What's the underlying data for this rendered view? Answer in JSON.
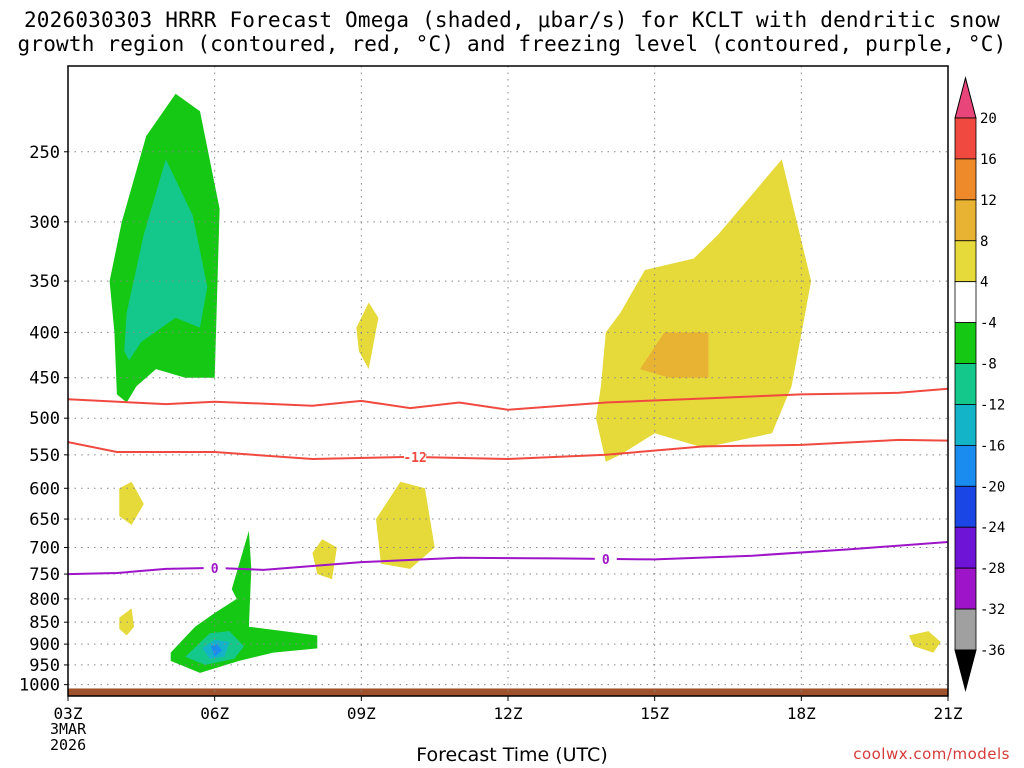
{
  "chart_data": {
    "type": "heatmap",
    "title_line1": "2026030303 HRRR Forecast Omega (shaded, μbar/s) for KCLT with dendritic snow",
    "title_line2": "growth region (contoured, red, °C) and freezing level (contoured, purple, °C)",
    "xlabel": "Forecast Time (UTC)",
    "x_ticks": [
      "03Z",
      "06Z",
      "09Z",
      "12Z",
      "15Z",
      "18Z",
      "21Z"
    ],
    "x_start_sub": [
      "3MAR",
      "2026"
    ],
    "x_range_hours": [
      0,
      18
    ],
    "y_ticks": [
      250,
      300,
      350,
      400,
      450,
      500,
      550,
      600,
      650,
      700,
      750,
      800,
      850,
      900,
      950,
      1000
    ],
    "y_axis": "pressure (hPa), log-scaled, increasing downward",
    "y_range": [
      200,
      1030
    ],
    "grid": true,
    "colorbar": {
      "labels": [
        "20",
        "16",
        "12",
        "8",
        "4",
        "-4",
        "-8",
        "-12",
        "-16",
        "-20",
        "-24",
        "-28",
        "-32",
        "-36"
      ],
      "colors": [
        "#e8467a",
        "#f04a40",
        "#ee8a2a",
        "#e8b232",
        "#e6d93a",
        "#ffffff",
        "#14c814",
        "#14c88c",
        "#14b4c8",
        "#1a8cf0",
        "#1a46e6",
        "#6e14d6",
        "#9e14c8",
        "#a0a0a0",
        "#000000"
      ]
    },
    "omega_regions": [
      {
        "level": -4,
        "color": "#14c814",
        "points": [
          [
            1.0,
            470
          ],
          [
            0.95,
            400
          ],
          [
            0.85,
            350
          ],
          [
            1.1,
            300
          ],
          [
            1.6,
            240
          ],
          [
            2.2,
            215
          ],
          [
            2.7,
            225
          ],
          [
            3.1,
            290
          ],
          [
            3.0,
            450
          ],
          [
            2.4,
            450
          ],
          [
            1.8,
            440
          ],
          [
            1.4,
            460
          ],
          [
            1.2,
            480
          ]
        ]
      },
      {
        "level": -8,
        "color": "#14c88c",
        "points": [
          [
            1.15,
            420
          ],
          [
            1.2,
            380
          ],
          [
            1.55,
            310
          ],
          [
            2.0,
            255
          ],
          [
            2.55,
            295
          ],
          [
            2.85,
            355
          ],
          [
            2.7,
            395
          ],
          [
            2.2,
            385
          ],
          [
            1.5,
            410
          ],
          [
            1.25,
            430
          ]
        ]
      },
      {
        "level": -4,
        "color": "#14c814",
        "points": [
          [
            2.1,
            920
          ],
          [
            2.6,
            860
          ],
          [
            3.0,
            830
          ],
          [
            3.45,
            800
          ],
          [
            3.35,
            780
          ],
          [
            3.7,
            670
          ],
          [
            3.75,
            740
          ],
          [
            3.7,
            860
          ],
          [
            5.1,
            880
          ],
          [
            5.1,
            910
          ],
          [
            4.2,
            920
          ],
          [
            3.5,
            940
          ],
          [
            2.7,
            970
          ],
          [
            2.1,
            940
          ]
        ]
      },
      {
        "level": -8,
        "color": "#14c88c",
        "points": [
          [
            2.4,
            930
          ],
          [
            2.9,
            875
          ],
          [
            3.3,
            870
          ],
          [
            3.6,
            905
          ],
          [
            3.4,
            935
          ],
          [
            2.8,
            950
          ]
        ]
      },
      {
        "level": -12,
        "color": "#14b4c8",
        "points": [
          [
            2.75,
            910
          ],
          [
            3.0,
            890
          ],
          [
            3.3,
            895
          ],
          [
            3.2,
            930
          ],
          [
            2.9,
            935
          ]
        ]
      },
      {
        "level": -16,
        "color": "#1a8cf0",
        "points": [
          [
            2.92,
            905
          ],
          [
            3.05,
            900
          ],
          [
            3.15,
            915
          ],
          [
            3.0,
            930
          ]
        ]
      },
      {
        "level": 4,
        "color": "#e6d93a",
        "points": [
          [
            1.05,
            600
          ],
          [
            1.3,
            590
          ],
          [
            1.55,
            625
          ],
          [
            1.3,
            660
          ],
          [
            1.05,
            645
          ]
        ]
      },
      {
        "level": 4,
        "color": "#e6d93a",
        "points": [
          [
            1.05,
            840
          ],
          [
            1.3,
            820
          ],
          [
            1.35,
            860
          ],
          [
            1.2,
            880
          ],
          [
            1.05,
            865
          ]
        ]
      },
      {
        "level": 4,
        "color": "#e6d93a",
        "points": [
          [
            5.9,
            395
          ],
          [
            6.15,
            370
          ],
          [
            6.35,
            385
          ],
          [
            6.15,
            440
          ],
          [
            5.95,
            420
          ]
        ]
      },
      {
        "level": 4,
        "color": "#e6d93a",
        "points": [
          [
            5.0,
            710
          ],
          [
            5.2,
            685
          ],
          [
            5.5,
            700
          ],
          [
            5.4,
            760
          ],
          [
            5.1,
            750
          ]
        ]
      },
      {
        "level": 4,
        "color": "#e6d93a",
        "points": [
          [
            6.3,
            650
          ],
          [
            6.8,
            590
          ],
          [
            7.3,
            600
          ],
          [
            7.5,
            700
          ],
          [
            7.0,
            740
          ],
          [
            6.4,
            730
          ]
        ]
      },
      {
        "level": 4,
        "color": "#e6d93a",
        "points": [
          [
            10.8,
            500
          ],
          [
            10.9,
            460
          ],
          [
            11.0,
            400
          ],
          [
            11.3,
            380
          ],
          [
            11.8,
            340
          ],
          [
            12.8,
            330
          ],
          [
            13.3,
            310
          ],
          [
            14.6,
            255
          ],
          [
            15.2,
            350
          ],
          [
            14.8,
            460
          ],
          [
            14.4,
            520
          ],
          [
            13.0,
            540
          ],
          [
            12.0,
            520
          ],
          [
            11.3,
            550
          ],
          [
            11.0,
            560
          ]
        ]
      },
      {
        "level": 8,
        "color": "#e8b232",
        "points": [
          [
            11.7,
            440
          ],
          [
            12.2,
            400
          ],
          [
            13.1,
            400
          ],
          [
            13.1,
            450
          ],
          [
            12.3,
            450
          ]
        ]
      },
      {
        "level": 4,
        "color": "#e6d93a",
        "points": [
          [
            17.2,
            880
          ],
          [
            17.6,
            870
          ],
          [
            17.85,
            895
          ],
          [
            17.7,
            920
          ],
          [
            17.3,
            905
          ]
        ]
      }
    ],
    "contours": [
      {
        "name": "",
        "color": "#f04a40",
        "label": "",
        "points": [
          [
            0,
            476
          ],
          [
            2,
            482
          ],
          [
            3,
            479
          ],
          [
            5,
            484
          ],
          [
            6,
            478
          ],
          [
            7,
            487
          ],
          [
            8,
            480
          ],
          [
            9,
            489
          ],
          [
            11,
            480
          ],
          [
            13,
            475
          ],
          [
            15,
            470
          ],
          [
            17,
            468
          ],
          [
            18,
            463
          ]
        ]
      },
      {
        "name": "",
        "color": "#f04a40",
        "label": "-12",
        "label_x": 7.1,
        "points": [
          [
            0,
            532
          ],
          [
            1,
            546
          ],
          [
            3,
            546
          ],
          [
            5,
            556
          ],
          [
            7,
            553
          ],
          [
            9,
            556
          ],
          [
            11,
            550
          ],
          [
            13,
            538
          ],
          [
            15,
            536
          ],
          [
            17,
            529
          ],
          [
            18,
            530
          ]
        ]
      },
      {
        "name": "",
        "color": "#9e14c8",
        "label": "0",
        "label_x": 3.0,
        "label_x2": 11.0,
        "points": [
          [
            0,
            750
          ],
          [
            1,
            748
          ],
          [
            2,
            740
          ],
          [
            3,
            738
          ],
          [
            4,
            742
          ],
          [
            6,
            727
          ],
          [
            8,
            719
          ],
          [
            10,
            720
          ],
          [
            12,
            722
          ],
          [
            14,
            715
          ],
          [
            16,
            703
          ],
          [
            18,
            690
          ]
        ]
      }
    ],
    "terrain_below_hpa": 1010
  },
  "credit": "coolwx.com/models"
}
